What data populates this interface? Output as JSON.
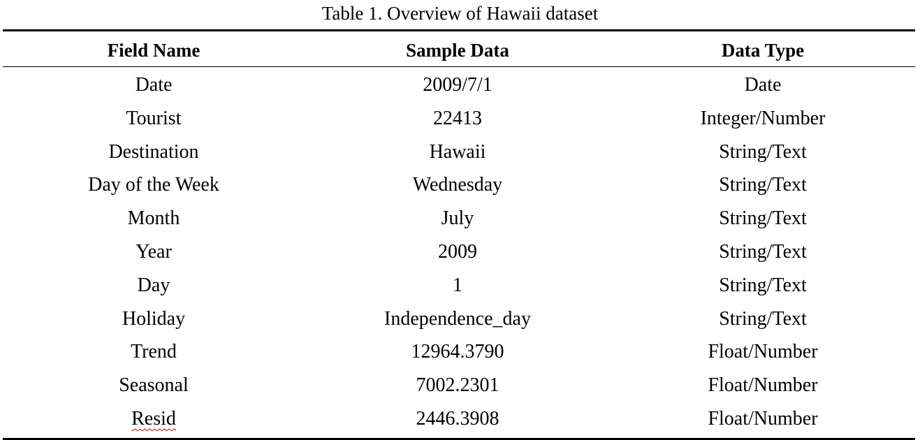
{
  "caption": "Table 1. Overview of Hawaii dataset",
  "table": {
    "headers": [
      "Field Name",
      "Sample Data",
      "Data Type"
    ],
    "rows": [
      [
        "Date",
        "2009/7/1",
        "Date"
      ],
      [
        "Tourist",
        "22413",
        "Integer/Number"
      ],
      [
        "Destination",
        "Hawaii",
        "String/Text"
      ],
      [
        "Day of the Week",
        "Wednesday",
        "String/Text"
      ],
      [
        "Month",
        "July",
        "String/Text"
      ],
      [
        "Year",
        "2009",
        "String/Text"
      ],
      [
        "Day",
        "1",
        "String/Text"
      ],
      [
        "Holiday",
        "Independence_day",
        "String/Text"
      ],
      [
        "Trend",
        "12964.3790",
        "Float/Number"
      ],
      [
        "Seasonal",
        "7002.2301",
        "Float/Number"
      ],
      [
        "Resid",
        "2446.3908",
        "Float/Number"
      ]
    ]
  }
}
